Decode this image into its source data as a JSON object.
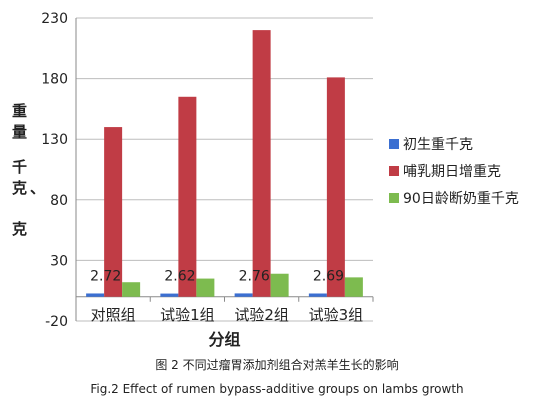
{
  "chart_data": {
    "type": "bar",
    "categories": [
      "对照组",
      "试验1组",
      "试验2组",
      "试验3组"
    ],
    "series": [
      {
        "name": "初生重千克",
        "values": [
          2.72,
          2.62,
          2.76,
          2.69
        ],
        "color": "#3b6fd1"
      },
      {
        "name": "哺乳期日增重克",
        "values": [
          140,
          165,
          220,
          181
        ],
        "color": "#c03c45"
      },
      {
        "name": "90日龄断奶重千克",
        "values": [
          12,
          15,
          19,
          16
        ],
        "color": "#7dbb4f"
      }
    ],
    "data_labels": [
      "2.72",
      "2.62",
      "2.76",
      "2.69"
    ],
    "ylim": [
      -20,
      230
    ],
    "yticks": [
      "-20",
      "30",
      "80",
      "130",
      "180",
      "230"
    ],
    "ytick_values": [
      -20,
      30,
      80,
      130,
      180,
      230
    ],
    "ylabel": "重量 千克、克",
    "ylabel_lines": [
      "重量",
      "千克、",
      "克"
    ],
    "xlabel": "分组",
    "legend": {
      "position": "right",
      "items": [
        "初生重千克",
        "哺乳期日增重克",
        "90日龄断奶重千克"
      ]
    },
    "grid": true
  },
  "caption": {
    "chinese": "图 2   不同过瘤胃添加剂组合对羔羊生长的影响",
    "english": "Fig.2   Effect of rumen bypass-additive groups on lambs growth"
  }
}
